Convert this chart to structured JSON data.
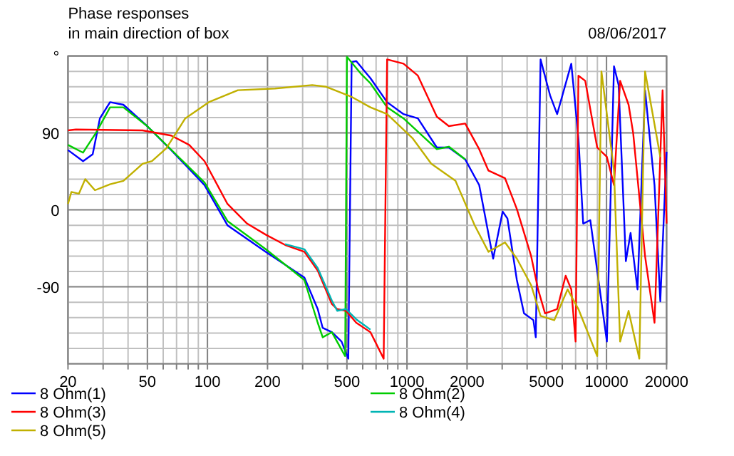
{
  "chart_data": {
    "type": "line",
    "title": "Phase responses",
    "subtitle": "in main direction of box",
    "annotations": [
      "08/06/2017"
    ],
    "log": "x",
    "grid": true,
    "legend": "bottom",
    "marker": "none",
    "line_style": "solid",
    "xlim": [
      20,
      20000
    ],
    "xticks": [
      20,
      {
        "value": 30,
        "label": null
      },
      {
        "value": 40,
        "label": null
      },
      50,
      {
        "value": 60,
        "label": null
      },
      {
        "value": 70,
        "label": null
      },
      {
        "value": 80,
        "label": null
      },
      {
        "value": 90,
        "label": null
      },
      100,
      200,
      {
        "value": 300,
        "label": null
      },
      {
        "value": 400,
        "label": null
      },
      500,
      {
        "value": 600,
        "label": null
      },
      {
        "value": 700,
        "label": null
      },
      {
        "value": 800,
        "label": null
      },
      {
        "value": 900,
        "label": null
      },
      1000,
      2000,
      {
        "value": 3000,
        "label": null
      },
      {
        "value": 4000,
        "label": null
      },
      5000,
      {
        "value": 6000,
        "label": null
      },
      {
        "value": 7000,
        "label": null
      },
      {
        "value": 8000,
        "label": null
      },
      {
        "value": 9000,
        "label": null
      },
      10000,
      20000
    ],
    "ylim": [
      -180,
      180
    ],
    "yticks": [
      {
        "value": 180,
        "label": "°"
      },
      {
        "value": 162,
        "label": null
      },
      {
        "value": 144,
        "label": null
      },
      {
        "value": 126,
        "label": null
      },
      {
        "value": 108,
        "label": null
      },
      90,
      {
        "value": 72,
        "label": null
      },
      {
        "value": 54,
        "label": null
      },
      {
        "value": 36,
        "label": null
      },
      {
        "value": 18,
        "label": null
      },
      0,
      {
        "value": -18,
        "label": null
      },
      {
        "value": -36,
        "label": null
      },
      {
        "value": -54,
        "label": null
      },
      {
        "value": -72,
        "label": null
      },
      -90,
      {
        "value": -108,
        "label": null
      },
      {
        "value": -126,
        "label": null
      },
      {
        "value": -144,
        "label": null
      },
      {
        "value": -162,
        "label": null
      },
      {
        "value": -180,
        "label": null
      }
    ],
    "series": [
      {
        "name": "8 Ohm(1)",
        "color": "#0000ff",
        "x": [
          20,
          23.8,
          26.6,
          28.9,
          32.5,
          37.9,
          49.9,
          65.8,
          96.7,
          126,
          196,
          306,
          357,
          378,
          420,
          470,
          508,
          528,
          557,
          656,
          795,
          961,
          1134,
          1411,
          1621,
          1958,
          2301,
          2703,
          3016,
          3187,
          3553,
          3859,
          4301,
          4420,
          4672,
          5213,
          5655,
          6660,
          7231,
          7638,
          8293,
          9251,
          10040,
          10900,
          11500,
          12500,
          13200,
          14300,
          15600,
          17400,
          18600,
          20000
        ],
        "values": [
          70,
          57,
          65,
          107,
          126,
          123,
          98,
          70,
          29,
          -18,
          -49,
          -79,
          -116,
          -138,
          -143,
          -154,
          -174,
          173,
          174,
          154,
          126,
          112,
          107,
          73,
          73,
          59,
          29,
          -57,
          -2,
          -10,
          -82,
          -121,
          -129,
          -149,
          176,
          134,
          112,
          171,
          84,
          -16,
          -12,
          -93,
          -154,
          168,
          146,
          -60,
          -27,
          -93,
          140,
          29,
          -107,
          68
        ]
      },
      {
        "name": "8 Ohm(2)",
        "color": "#00cc00",
        "x": [
          20,
          23.8,
          27.6,
          32.5,
          37.9,
          49.9,
          96.7,
          126,
          196,
          306,
          357,
          378,
          420,
          490,
          500,
          589,
          656,
          795,
          961,
          1411,
          1621,
          1958
        ],
        "values": [
          76,
          67,
          90,
          120,
          120,
          98,
          32,
          -13,
          -46,
          -82,
          -132,
          -149,
          -143,
          -171,
          179,
          159,
          148,
          120,
          107,
          71,
          74,
          59
        ]
      },
      {
        "name": "8 Ohm(3)",
        "color": "#ff0000",
        "x": [
          20,
          21.9,
          47.3,
          65.8,
          81,
          96.7,
          126,
          158,
          196,
          245,
          306,
          357,
          420,
          447,
          495,
          557,
          656,
          764,
          795,
          961,
          1134,
          1411,
          1621,
          1958,
          2301,
          2560,
          3100,
          3553,
          4190,
          4540,
          4920,
          5655,
          6240,
          6660,
          7000,
          7231,
          7820,
          8980,
          10040,
          10900,
          11700,
          12900,
          13600,
          15600,
          17400,
          19100,
          20000
        ],
        "values": [
          93,
          94,
          93,
          87,
          76,
          57,
          7,
          -16,
          -29,
          -41,
          -49,
          -71,
          -110,
          -116,
          -118,
          -132,
          -143,
          -174,
          176,
          171,
          157,
          109,
          98,
          101,
          71,
          46,
          37,
          1,
          -54,
          -93,
          -121,
          -116,
          -77,
          -93,
          -154,
          157,
          151,
          73,
          62,
          29,
          151,
          123,
          90,
          -54,
          -132,
          140,
          -16
        ]
      },
      {
        "name": "8 Ohm(4)",
        "color": "#00b4b4",
        "x": [
          245,
          306,
          357,
          420,
          447,
          495,
          557,
          656
        ],
        "values": [
          -40,
          -46,
          -68,
          -106,
          -118,
          -116,
          -128,
          -140
        ]
      },
      {
        "name": "8 Ohm(5)",
        "color": "#c0b000",
        "x": [
          20,
          20.8,
          22.7,
          24.4,
          27.3,
          32.5,
          37.9,
          47.3,
          52.7,
          62.2,
          77.4,
          101.5,
          142,
          218,
          335,
          394,
          530,
          656,
          795,
          1065,
          1323,
          1750,
          2184,
          2560,
          3100,
          3553,
          4190,
          4672,
          5470,
          6380,
          7231,
          8980,
          9430,
          10900,
          11700,
          12900,
          14600,
          15600,
          17900,
          18600
        ],
        "values": [
          7,
          21,
          19,
          36,
          23,
          30,
          34,
          54,
          57,
          72,
          107,
          126,
          140,
          142,
          146,
          144,
          132,
          120,
          112,
          84,
          54,
          34,
          -18,
          -49,
          -38,
          -57,
          -88,
          -124,
          -129,
          -93,
          -116,
          -171,
          162,
          46,
          -154,
          -118,
          -174,
          162,
          84,
          62
        ]
      }
    ]
  }
}
